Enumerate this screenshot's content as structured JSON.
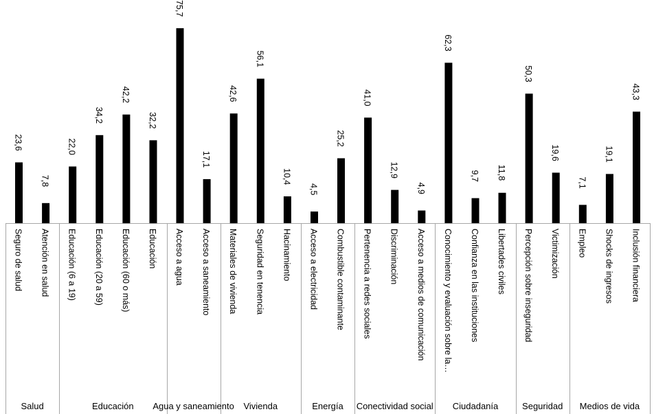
{
  "chart_data": {
    "type": "bar",
    "title": "",
    "xlabel": "",
    "ylabel": "",
    "ylim": [
      0,
      80
    ],
    "grid": false,
    "legend": "none",
    "bar_color": "#000000",
    "axis_color": "#a6a6a6",
    "categories": [
      "Seguro de salud",
      "Atención en salud",
      "Educación (6 a 19)",
      "Educación (20 a 59)",
      "Educación (60 o más)",
      "Educación",
      "Acceso a agua",
      "Acceso a saneamiento",
      "Materiales de vivienda",
      "Seguridad en tenencia",
      "Hacinamiento",
      "Acceso a electricidad",
      "Combustible contaminante",
      "Pertenencia a redes sociales",
      "Discriminación",
      "Acceso a medios de comunicación",
      "Conocimiento y evaluación sobre la…",
      "Confianza en las instituciones",
      "Libertades civiles",
      "Percepción sobre inseguridad",
      "Victimización",
      "Empleo",
      "Shocks de ingresos",
      "Inclusión financiera"
    ],
    "values": [
      23.6,
      7.8,
      22.0,
      34.2,
      42.2,
      32.2,
      75.7,
      17.1,
      42.6,
      56.1,
      10.4,
      4.5,
      25.2,
      41.0,
      12.9,
      4.9,
      62.3,
      9.7,
      11.8,
      50.3,
      19.6,
      7.1,
      19.1,
      43.3
    ],
    "value_labels": [
      "23,6",
      "7,8",
      "22,0",
      "34,2",
      "42,2",
      "32,2",
      "75,7",
      "17,1",
      "42,6",
      "56,1",
      "10,4",
      "4,5",
      "25,2",
      "41,0",
      "12,9",
      "4,9",
      "62,3",
      "9,7",
      "11,8",
      "50,3",
      "19,6",
      "7,1",
      "19,1",
      "43,3"
    ],
    "groups": [
      {
        "label": "Salud",
        "count": 2
      },
      {
        "label": "Educación",
        "count": 4
      },
      {
        "label": "Agua y saneamiento",
        "count": 2
      },
      {
        "label": "Vivienda",
        "count": 3
      },
      {
        "label": "Energía",
        "count": 2
      },
      {
        "label": "Conectividad social",
        "count": 3
      },
      {
        "label": "Ciudadanía",
        "count": 3
      },
      {
        "label": "Seguridad",
        "count": 2
      },
      {
        "label": "Medios de vida",
        "count": 3
      }
    ]
  }
}
